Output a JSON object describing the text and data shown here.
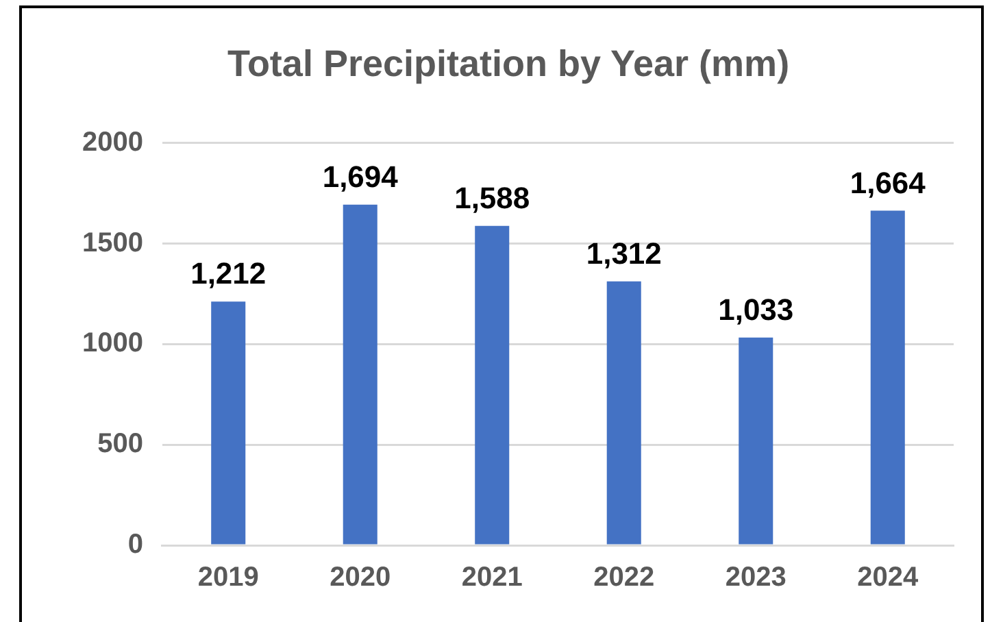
{
  "chart_data": {
    "type": "bar",
    "title": "Total Precipitation by Year (mm)",
    "categories": [
      "2019",
      "2020",
      "2021",
      "2022",
      "2023",
      "2024"
    ],
    "values": [
      1212,
      1694,
      1588,
      1312,
      1033,
      1664
    ],
    "value_labels": [
      "1,212",
      "1,694",
      "1,588",
      "1,312",
      "1,033",
      "1,664"
    ],
    "color": "#4472c4",
    "ylim": [
      0,
      2000
    ],
    "yticks": [
      0,
      500,
      1000,
      1500,
      2000
    ],
    "grid": "y",
    "legend": false
  }
}
